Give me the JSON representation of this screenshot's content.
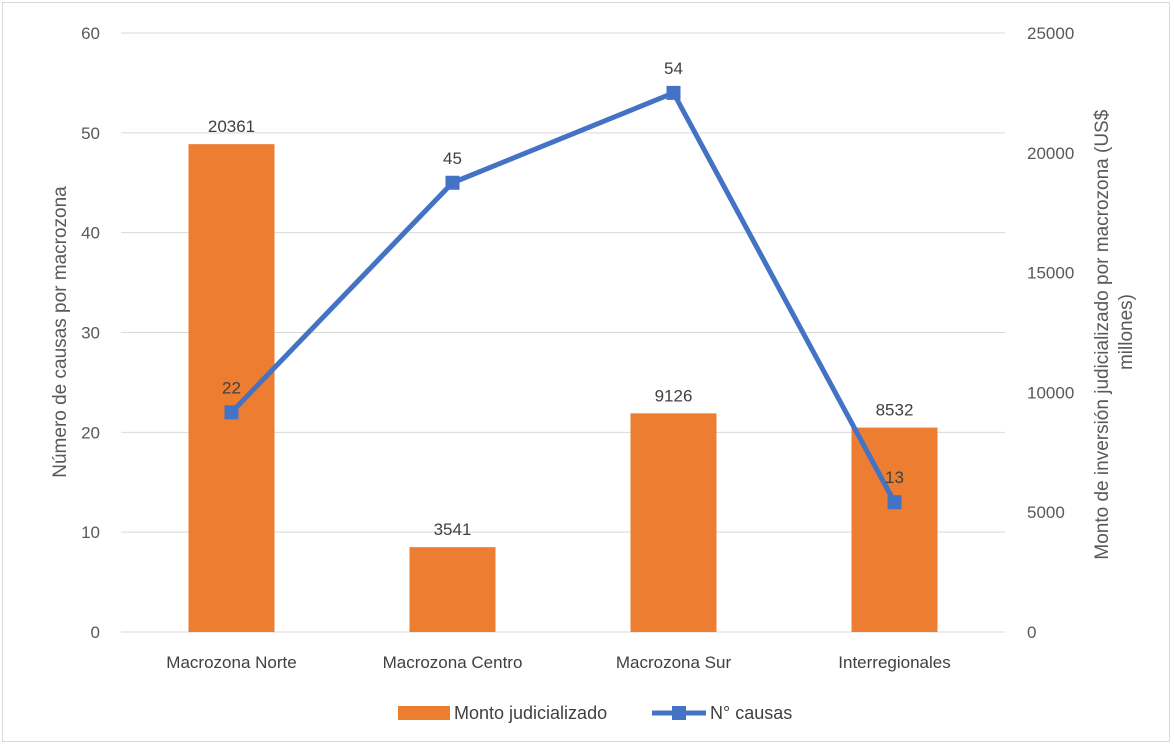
{
  "chart_data": {
    "type": "bar",
    "categories": [
      "Macrozona Norte",
      "Macrozona Centro",
      "Macrozona Sur",
      "Interregionales"
    ],
    "series": [
      {
        "name": "Monto judicializado",
        "chart": "bar",
        "axis": "right",
        "color": "#ED7D31",
        "values": [
          20361,
          3541,
          9126,
          8532
        ]
      },
      {
        "name": "N° causas",
        "chart": "line",
        "axis": "left",
        "color": "#4472C4",
        "marker": "square",
        "values": [
          22,
          45,
          54,
          13
        ]
      }
    ],
    "ylabel": "Número de causas por macrozona",
    "y2label_lines": [
      "Monto de inversión judicializado por macrozona (US$",
      "millones)"
    ],
    "ylim": [
      0,
      60
    ],
    "yticks": [
      0,
      10,
      20,
      30,
      40,
      50,
      60
    ],
    "y2lim": [
      0,
      25000
    ],
    "y2ticks": [
      0,
      5000,
      10000,
      15000,
      20000,
      25000
    ],
    "grid": true,
    "legend": "bottom"
  }
}
